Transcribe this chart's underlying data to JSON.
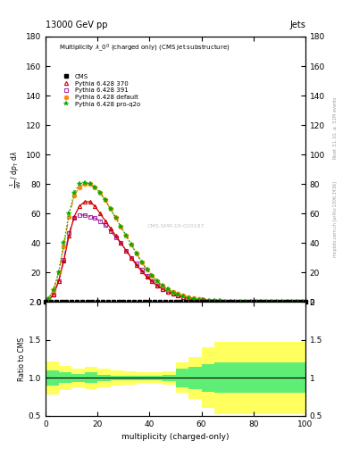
{
  "title_top": "13000 GeV pp",
  "title_right": "Jets",
  "plot_title": "Multiplicity $\\lambda$_0$^0$ (charged only) (CMS jet substructure)",
  "xlabel": "multiplicity (charged-only)",
  "ylabel_main": "$\\frac{1}{\\mathrm{d}N}$ / $\\mathrm{d}p_\\mathrm{T}$ $\\mathrm{d}\\lambda$",
  "ylabel_ratio": "Ratio to CMS",
  "right_label_top": "Rivet 3.1.10, $\\geq$ 3.1M events",
  "right_label_bot": "mcplots.cern.ch [arXiv:1306.3436]",
  "xlim": [
    0,
    100
  ],
  "ylim_main": [
    0,
    180
  ],
  "ylim_ratio": [
    0.5,
    2.0
  ],
  "cms_x": [
    0,
    2,
    4,
    6,
    8,
    10,
    12,
    14,
    16,
    18,
    20,
    22,
    24,
    26,
    28,
    30,
    32,
    34,
    36,
    38,
    40,
    42,
    44,
    46,
    48,
    50,
    52,
    54,
    56,
    58,
    60,
    62,
    64,
    66,
    68,
    70,
    72,
    74,
    76,
    78,
    80,
    82,
    84,
    86,
    88,
    90,
    92,
    94,
    96,
    98,
    100
  ],
  "cms_y": [
    0,
    0,
    0,
    0,
    0,
    0,
    0,
    0,
    0,
    0,
    0,
    0,
    0,
    0,
    0,
    0,
    0,
    0,
    0,
    0,
    0,
    0,
    0,
    0,
    0,
    0,
    0,
    0,
    0,
    0,
    0,
    0,
    0,
    0,
    0,
    0,
    0,
    0,
    0,
    0,
    0,
    0,
    0,
    0,
    0,
    0,
    0,
    0,
    0,
    0,
    0
  ],
  "py370_x": [
    1,
    3,
    5,
    7,
    9,
    11,
    13,
    15,
    17,
    19,
    21,
    23,
    25,
    27,
    29,
    31,
    33,
    35,
    37,
    39,
    41,
    43,
    45,
    47,
    49,
    51,
    53,
    55,
    57,
    59,
    61,
    63,
    65,
    67,
    69,
    71,
    73,
    75,
    77,
    79,
    81,
    83,
    85,
    87,
    89,
    91,
    93,
    95,
    97,
    99
  ],
  "py370_y": [
    1,
    5,
    14,
    28,
    45,
    58,
    65,
    68,
    68,
    65,
    60,
    55,
    50,
    45,
    40,
    35,
    30,
    25,
    21,
    17,
    14,
    11,
    9,
    7,
    5.5,
    4.2,
    3.2,
    2.4,
    1.8,
    1.4,
    1.0,
    0.8,
    0.6,
    0.5,
    0.4,
    0.3,
    0.25,
    0.2,
    0.15,
    0.12,
    0.1,
    0.08,
    0.06,
    0.05,
    0.04,
    0.03,
    0.025,
    0.02,
    0.015,
    0.01
  ],
  "py391_x": [
    1,
    3,
    5,
    7,
    9,
    11,
    13,
    15,
    17,
    19,
    21,
    23,
    25,
    27,
    29,
    31,
    33,
    35,
    37,
    39,
    41,
    43,
    45,
    47,
    49,
    51,
    53,
    55,
    57,
    59,
    61,
    63,
    65,
    67,
    69,
    71,
    73,
    75,
    77,
    79,
    81,
    83,
    85,
    87,
    89,
    91,
    93,
    95,
    97,
    99
  ],
  "py391_y": [
    1,
    5,
    14,
    29,
    47,
    57,
    59,
    59,
    58,
    57,
    55,
    52,
    48,
    44,
    40,
    35,
    30,
    26,
    22,
    18,
    14,
    11,
    9,
    7,
    5.5,
    4.2,
    3.2,
    2.4,
    1.8,
    1.4,
    1.0,
    0.8,
    0.6,
    0.5,
    0.4,
    0.3,
    0.25,
    0.2,
    0.15,
    0.12,
    0.1,
    0.08,
    0.06,
    0.05,
    0.04,
    0.03,
    0.025,
    0.02,
    0.015,
    0.01
  ],
  "pydef_x": [
    1,
    3,
    5,
    7,
    9,
    11,
    13,
    15,
    17,
    19,
    21,
    23,
    25,
    27,
    29,
    31,
    33,
    35,
    37,
    39,
    41,
    43,
    45,
    47,
    49,
    51,
    53,
    55,
    57,
    59,
    61,
    63,
    65,
    67,
    69,
    71,
    73,
    75,
    77,
    79,
    81,
    83,
    85,
    87,
    89,
    91,
    93,
    95,
    97,
    99
  ],
  "pydef_y": [
    2,
    8,
    20,
    38,
    58,
    72,
    78,
    80,
    80,
    78,
    74,
    69,
    63,
    57,
    51,
    45,
    39,
    33,
    27,
    22,
    18,
    14,
    11,
    9,
    7,
    5.5,
    4.2,
    3.2,
    2.4,
    1.8,
    1.4,
    1.0,
    0.8,
    0.6,
    0.5,
    0.4,
    0.3,
    0.25,
    0.2,
    0.15,
    0.12,
    0.1,
    0.08,
    0.06,
    0.05,
    0.04,
    0.03,
    0.025,
    0.02,
    0.015
  ],
  "pyq2o_x": [
    1,
    3,
    5,
    7,
    9,
    11,
    13,
    15,
    17,
    19,
    21,
    23,
    25,
    27,
    29,
    31,
    33,
    35,
    37,
    39,
    41,
    43,
    45,
    47,
    49,
    51,
    53,
    55,
    57,
    59,
    61,
    63,
    65,
    67,
    69,
    71,
    73,
    75,
    77,
    79,
    81,
    83,
    85,
    87,
    89,
    91,
    93,
    95,
    97,
    99
  ],
  "pyq2o_y": [
    2,
    8,
    20,
    40,
    60,
    74,
    80,
    81,
    80,
    78,
    74,
    69,
    63,
    57,
    51,
    45,
    39,
    33,
    27,
    22,
    18,
    14,
    11,
    8.5,
    6.5,
    5,
    3.8,
    2.9,
    2.2,
    1.7,
    1.3,
    1.0,
    0.8,
    0.6,
    0.5,
    0.4,
    0.3,
    0.25,
    0.2,
    0.15,
    0.12,
    0.1,
    0.08,
    0.06,
    0.05,
    0.04,
    0.03,
    0.025,
    0.02,
    0.015
  ],
  "color_cms": "#000000",
  "color_py370": "#cc0000",
  "color_py391": "#990099",
  "color_pydef": "#ff8800",
  "color_pyq2o": "#00aa00",
  "ratio_bins_x": [
    0,
    5,
    10,
    15,
    20,
    25,
    30,
    35,
    40,
    45,
    50,
    55,
    60,
    65,
    70,
    100
  ],
  "ratio_green_lo": [
    0.9,
    0.93,
    0.95,
    0.93,
    0.96,
    0.97,
    0.97,
    0.97,
    0.97,
    0.96,
    0.88,
    0.85,
    0.82,
    0.8,
    0.8,
    0.8
  ],
  "ratio_green_hi": [
    1.1,
    1.07,
    1.05,
    1.07,
    1.04,
    1.03,
    1.03,
    1.03,
    1.03,
    1.04,
    1.12,
    1.15,
    1.18,
    1.2,
    1.2,
    1.2
  ],
  "ratio_yellow_lo": [
    0.78,
    0.84,
    0.88,
    0.85,
    0.88,
    0.9,
    0.91,
    0.93,
    0.93,
    0.91,
    0.8,
    0.72,
    0.6,
    0.52,
    0.52,
    0.52
  ],
  "ratio_yellow_hi": [
    1.22,
    1.16,
    1.12,
    1.15,
    1.12,
    1.1,
    1.09,
    1.07,
    1.07,
    1.09,
    1.2,
    1.28,
    1.4,
    1.48,
    1.48,
    1.48
  ],
  "watermark": "CMS-SMP-19-020187"
}
